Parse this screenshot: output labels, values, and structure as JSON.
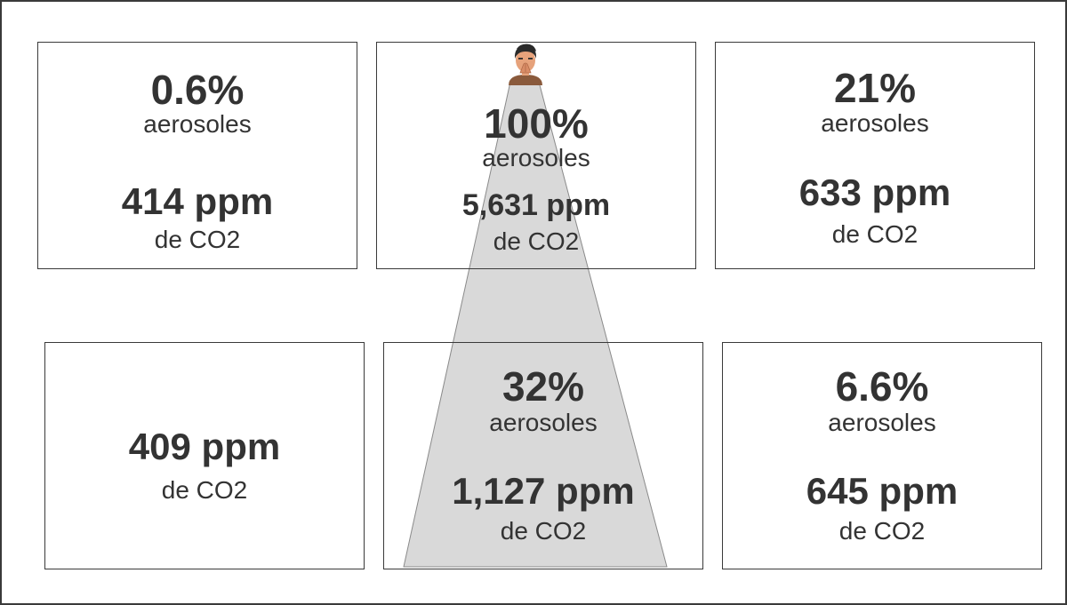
{
  "colors": {
    "border": "#3a3a3a",
    "text": "#333333",
    "cone_fill": "#d9d9d9",
    "skin": "#e6a27b",
    "hair": "#2a2a2a",
    "shirt": "#8a5a3c"
  },
  "icons": {
    "person": "person-sneezing-icon"
  },
  "cells": {
    "top_left": {
      "aerosol": "0.6%",
      "aerosol_label": "aerosoles",
      "ppm": "414 ppm",
      "co2_label": "de CO2"
    },
    "top_center": {
      "aerosol": "100%",
      "aerosol_label": "aerosoles",
      "ppm": "5,631 ppm",
      "co2_label": "de CO2"
    },
    "top_right": {
      "aerosol": "21%",
      "aerosol_label": "aerosoles",
      "ppm": "633 ppm",
      "co2_label": "de CO2"
    },
    "bottom_left": {
      "aerosol": "",
      "aerosol_label": "",
      "ppm": "409 ppm",
      "co2_label": "de CO2"
    },
    "bottom_center": {
      "aerosol": "32%",
      "aerosol_label": "aerosoles",
      "ppm": "1,127 ppm",
      "co2_label": "de CO2"
    },
    "bottom_right": {
      "aerosol": "6.6%",
      "aerosol_label": "aerosoles",
      "ppm": "645 ppm",
      "co2_label": "de CO2"
    }
  }
}
